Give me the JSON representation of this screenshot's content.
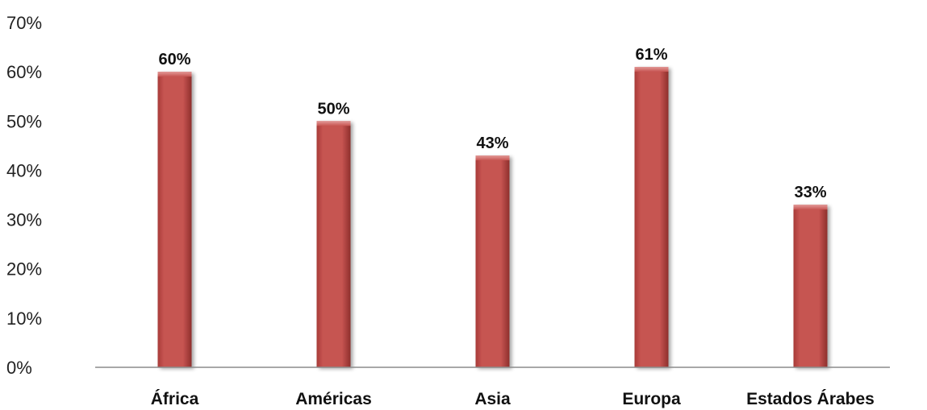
{
  "chart_data": {
    "type": "bar",
    "categories": [
      "África",
      "Américas",
      "Asia",
      "Europa",
      "Estados Árabes"
    ],
    "values": [
      60,
      50,
      43,
      61,
      33
    ],
    "data_labels": [
      "60%",
      "50%",
      "43%",
      "61%",
      "33%"
    ],
    "ylim": [
      0,
      70
    ],
    "y_ticks": [
      0,
      10,
      20,
      30,
      40,
      50,
      60,
      70
    ],
    "y_tick_labels": [
      "0%",
      "10%",
      "20%",
      "30%",
      "40%",
      "50%",
      "60%",
      "70%"
    ],
    "grid": false,
    "legend": "none",
    "bar_color": "#c0504d"
  }
}
